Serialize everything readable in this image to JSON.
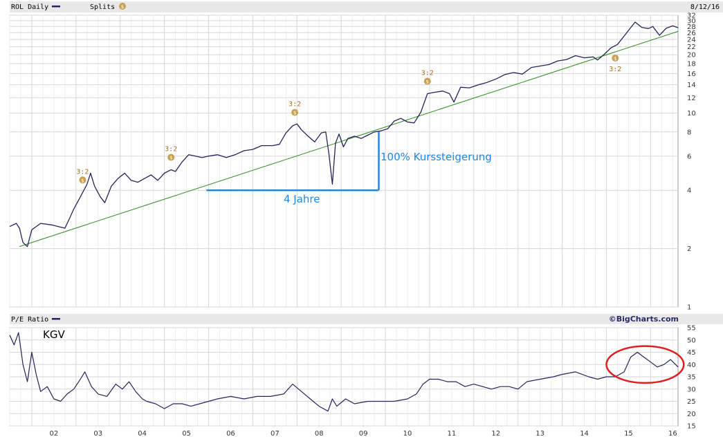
{
  "header": {
    "symbol_label": "ROL Daily",
    "splits_label": "Splits",
    "date": "8/12/16"
  },
  "lower_header": {
    "pe_label": "P/E Ratio",
    "brand": "©BigCharts.com"
  },
  "annotations": {
    "pct_gain": "100% Kurssteigerung",
    "duration": "4 Jahre",
    "kgv": "KGV"
  },
  "colors": {
    "price_line": "#23235a",
    "trend_line": "#2e8b1e",
    "annotation": "#1e88e5",
    "split_marker": "#c8a050",
    "highlight_ellipse": "#e02020",
    "grid": "#d6d6d6",
    "header_band": "#e8e8e8"
  },
  "icons": {
    "split_marker": "dollar-coin-icon"
  },
  "chart_data": [
    {
      "type": "line",
      "name": "price",
      "title": "ROL Daily",
      "yscale": "log",
      "ylim": [
        1,
        32
      ],
      "xlim": [
        2001.5,
        2016.62
      ],
      "y_ticks": [
        1,
        2,
        4,
        6,
        8,
        10,
        12,
        14,
        16,
        18,
        20,
        22,
        24,
        26,
        28,
        30,
        32
      ],
      "x_ticks": [
        "02",
        "03",
        "04",
        "05",
        "06",
        "07",
        "08",
        "09",
        "10",
        "11",
        "12",
        "13",
        "14",
        "15",
        "16"
      ],
      "grid": true,
      "series": [
        {
          "name": "ROL",
          "x": [
            2001.5,
            2001.65,
            2001.72,
            2001.8,
            2001.9,
            2002.0,
            2002.2,
            2002.45,
            2002.6,
            2002.75,
            2002.85,
            2002.95,
            2003.1,
            2003.25,
            2003.33,
            2003.42,
            2003.55,
            2003.65,
            2003.8,
            2003.95,
            2004.1,
            2004.25,
            2004.4,
            2004.55,
            2004.7,
            2004.85,
            2005.0,
            2005.15,
            2005.25,
            2005.4,
            2005.55,
            2005.7,
            2005.85,
            2006.0,
            2006.2,
            2006.4,
            2006.6,
            2006.8,
            2007.0,
            2007.2,
            2007.45,
            2007.6,
            2007.75,
            2007.9,
            2008.0,
            2008.1,
            2008.25,
            2008.4,
            2008.55,
            2008.65,
            2008.72,
            2008.8,
            2008.87,
            2008.95,
            2009.05,
            2009.15,
            2009.3,
            2009.45,
            2009.6,
            2009.75,
            2009.9,
            2010.05,
            2010.2,
            2010.35,
            2010.5,
            2010.65,
            2010.8,
            2010.95,
            2011.1,
            2011.3,
            2011.45,
            2011.55,
            2011.7,
            2011.9,
            2012.1,
            2012.3,
            2012.5,
            2012.7,
            2012.9,
            2013.1,
            2013.3,
            2013.5,
            2013.7,
            2013.9,
            2014.1,
            2014.3,
            2014.5,
            2014.7,
            2014.8,
            2014.95,
            2015.1,
            2015.25,
            2015.4,
            2015.55,
            2015.65,
            2015.8,
            2015.95,
            2016.05,
            2016.2,
            2016.35,
            2016.5,
            2016.62
          ],
          "y": [
            2.6,
            2.7,
            2.55,
            2.15,
            2.05,
            2.5,
            2.7,
            2.65,
            2.6,
            2.55,
            2.85,
            3.2,
            3.7,
            4.3,
            4.9,
            4.2,
            3.7,
            3.45,
            4.2,
            4.6,
            4.9,
            4.5,
            4.4,
            4.6,
            4.8,
            4.5,
            4.9,
            5.1,
            5.0,
            5.6,
            6.1,
            6.0,
            5.9,
            6.0,
            6.1,
            5.9,
            6.1,
            6.4,
            6.5,
            6.8,
            6.8,
            6.9,
            7.9,
            8.6,
            8.8,
            8.2,
            7.6,
            7.1,
            7.9,
            8.0,
            6.2,
            4.3,
            7.0,
            7.8,
            6.7,
            7.4,
            7.6,
            7.4,
            7.7,
            8.0,
            8.1,
            8.3,
            9.1,
            9.4,
            9.0,
            8.9,
            10.1,
            12.6,
            12.8,
            13.0,
            12.6,
            11.4,
            13.6,
            13.5,
            14.0,
            14.4,
            15.0,
            15.8,
            16.2,
            15.9,
            17.2,
            17.5,
            17.8,
            18.6,
            18.9,
            19.8,
            19.3,
            19.5,
            18.8,
            20.1,
            21.7,
            22.6,
            25.0,
            27.6,
            29.5,
            27.7,
            27.3,
            28.0,
            25.2,
            27.4,
            28.2,
            27.6
          ]
        }
      ],
      "splits": [
        {
          "x": 2003.15,
          "label": "3:2",
          "position": "above"
        },
        {
          "x": 2005.15,
          "label": "3:2",
          "position": "above"
        },
        {
          "x": 2007.95,
          "label": "3:2",
          "position": "above"
        },
        {
          "x": 2010.95,
          "label": "3:2",
          "position": "above"
        },
        {
          "x": 2015.2,
          "label": "3:2",
          "position": "below"
        }
      ],
      "trendline": {
        "x": [
          2001.72,
          2016.62
        ],
        "y": [
          2.05,
          26.4
        ]
      },
      "measure": {
        "x_start": 2005.95,
        "x_end": 2009.85,
        "y_base": 4.0,
        "y_top": 8.0
      }
    },
    {
      "type": "line",
      "name": "pe",
      "title": "P/E Ratio",
      "ylim": [
        15,
        55
      ],
      "xlim": [
        2001.5,
        2016.62
      ],
      "y_ticks": [
        15,
        20,
        25,
        30,
        35,
        40,
        45,
        50,
        55
      ],
      "grid": true,
      "series": [
        {
          "name": "P/E",
          "x": [
            2001.5,
            2001.6,
            2001.7,
            2001.8,
            2001.9,
            2002.0,
            2002.1,
            2002.2,
            2002.35,
            2002.5,
            2002.65,
            2002.8,
            2002.95,
            2003.1,
            2003.2,
            2003.35,
            2003.5,
            2003.7,
            2003.9,
            2004.05,
            2004.2,
            2004.35,
            2004.5,
            2004.6,
            2004.8,
            2005.0,
            2005.2,
            2005.4,
            2005.6,
            2005.8,
            2006.0,
            2006.2,
            2006.5,
            2006.8,
            2007.1,
            2007.4,
            2007.7,
            2007.9,
            2008.1,
            2008.3,
            2008.5,
            2008.7,
            2008.8,
            2008.9,
            2009.1,
            2009.3,
            2009.6,
            2009.9,
            2010.2,
            2010.5,
            2010.7,
            2010.85,
            2011.0,
            2011.2,
            2011.4,
            2011.6,
            2011.8,
            2012.0,
            2012.2,
            2012.4,
            2012.6,
            2012.8,
            2013.0,
            2013.2,
            2013.5,
            2013.8,
            2014.0,
            2014.3,
            2014.6,
            2014.8,
            2015.0,
            2015.2,
            2015.4,
            2015.55,
            2015.7,
            2015.85,
            2016.0,
            2016.15,
            2016.3,
            2016.45,
            2016.62
          ],
          "y": [
            52,
            48,
            53,
            40,
            33,
            45,
            36,
            29,
            31,
            26,
            25,
            28,
            30,
            34,
            37,
            31,
            28,
            27,
            32,
            30,
            33,
            29,
            26,
            25,
            24,
            22,
            24,
            24,
            23,
            24,
            25,
            26,
            27,
            26,
            27,
            27,
            28,
            32,
            29,
            26,
            23,
            21,
            26,
            23,
            26,
            24,
            25,
            25,
            25,
            26,
            28,
            32,
            34,
            34,
            33,
            33,
            31,
            32,
            31,
            30,
            31,
            31,
            30,
            33,
            34,
            35,
            36,
            37,
            35,
            34,
            35,
            35,
            37,
            43,
            45,
            43,
            41,
            39,
            40,
            42,
            39
          ]
        }
      ],
      "highlight": {
        "shape": "ellipse",
        "x_range": [
          2015.0,
          2016.75
        ],
        "y_range": [
          32.5,
          47.5
        ]
      }
    }
  ]
}
